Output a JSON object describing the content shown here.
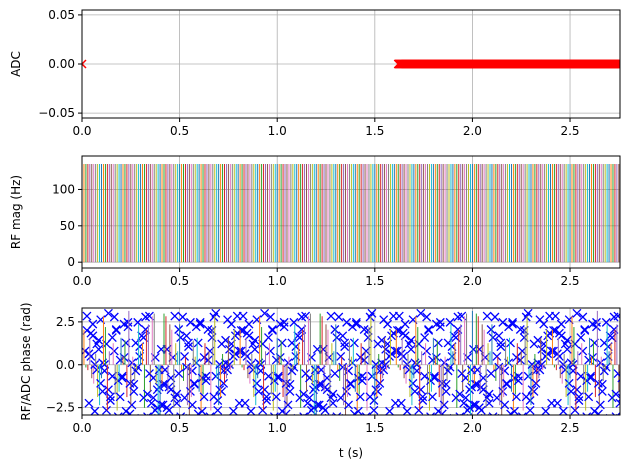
{
  "chart_data": [
    {
      "type": "scatter",
      "ylabel": "ADC",
      "xlim": [
        0,
        2.756
      ],
      "ylim": [
        -0.055,
        0.055
      ],
      "xticks": [
        "0.0",
        "0.5",
        "1.0",
        "1.5",
        "2.0",
        "2.5"
      ],
      "xtick_values": [
        0,
        0.5,
        1,
        1.5,
        2,
        2.5
      ],
      "yticks": [
        "−0.05",
        "0.00",
        "0.05"
      ],
      "ytick_values": [
        -0.05,
        0,
        0.05
      ],
      "grid": true,
      "marker": "x",
      "color": "#ff0000",
      "adc_samples": {
        "isolated_points": [
          0.0
        ],
        "dense_start": 1.62,
        "dense_end": 2.756,
        "step": 0.002,
        "value": 0
      }
    },
    {
      "type": "line",
      "ylabel": "RF mag (Hz)",
      "xlim": [
        0,
        2.756
      ],
      "ylim": [
        -8,
        146
      ],
      "xticks": [
        "0.0",
        "0.5",
        "1.0",
        "1.5",
        "2.0",
        "2.5"
      ],
      "xtick_values": [
        0,
        0.5,
        1,
        1.5,
        2,
        2.5
      ],
      "yticks": [
        "0",
        "50",
        "100"
      ],
      "ytick_values": [
        0,
        50,
        100
      ],
      "grid": true,
      "rf_pulses": {
        "start": 0.0,
        "step": 0.01,
        "count": 276,
        "amplitude_hz": 135
      }
    },
    {
      "type": "scatter",
      "ylabel": "RF/ADC phase (rad)",
      "xlabel": "t (s)",
      "xlim": [
        0,
        2.756
      ],
      "ylim": [
        -2.93,
        3.31
      ],
      "xticks": [
        "0.0",
        "0.5",
        "1.0",
        "1.5",
        "2.0",
        "2.5"
      ],
      "xtick_values": [
        0,
        0.5,
        1,
        1.5,
        2,
        2.5
      ],
      "yticks": [
        "−2.5",
        "0.0",
        "2.5"
      ],
      "ytick_values": [
        -2.5,
        0,
        2.5
      ],
      "grid": true,
      "rf_phase_spoiling_increment_deg": 117,
      "adc_marker_color": "#0000ff",
      "palette": [
        "#1f77b4",
        "#ff7f0e",
        "#2ca02c",
        "#d62728",
        "#9467bd",
        "#8c564b",
        "#e377c2",
        "#7f7f7f",
        "#bcbd22",
        "#17becf"
      ]
    }
  ]
}
